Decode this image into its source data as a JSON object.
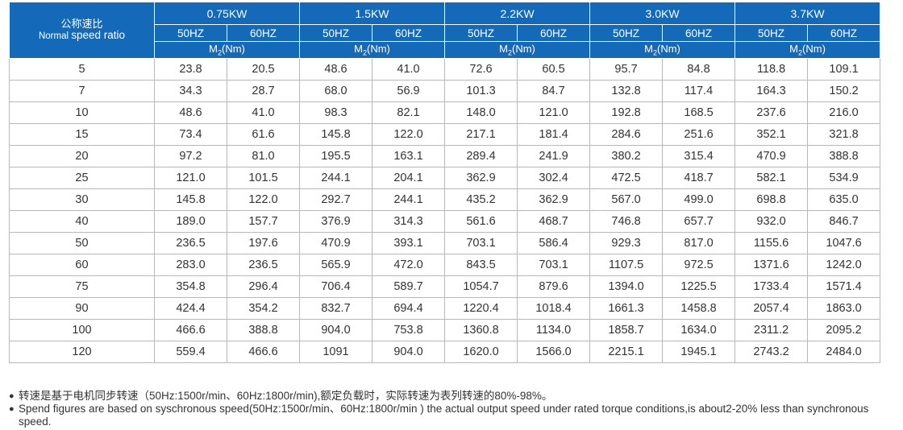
{
  "header": {
    "ratio_label_cn": "公称速比",
    "ratio_label_en_prefix": "Normal ",
    "ratio_label_en_main": "speed ratio",
    "torque_label_prefix": "M",
    "torque_label_sub": "2",
    "torque_label_suffix": "(Nm)",
    "powers": [
      "0.75KW",
      "1.5KW",
      "2.2KW",
      "3.0KW",
      "3.7KW"
    ],
    "frequencies": [
      "50HZ",
      "60HZ"
    ]
  },
  "rows": [
    {
      "ratio": "5",
      "values": [
        "23.8",
        "20.5",
        "48.6",
        "41.0",
        "72.6",
        "60.5",
        "95.7",
        "84.8",
        "118.8",
        "109.1"
      ]
    },
    {
      "ratio": "7",
      "values": [
        "34.3",
        "28.7",
        "68.0",
        "56.9",
        "101.3",
        "84.7",
        "132.8",
        "117.4",
        "164.3",
        "150.2"
      ]
    },
    {
      "ratio": "10",
      "values": [
        "48.6",
        "41.0",
        "98.3",
        "82.1",
        "148.0",
        "121.0",
        "192.8",
        "168.5",
        "237.6",
        "216.0"
      ]
    },
    {
      "ratio": "15",
      "values": [
        "73.4",
        "61.6",
        "145.8",
        "122.0",
        "217.1",
        "181.4",
        "284.6",
        "251.6",
        "352.1",
        "321.8"
      ]
    },
    {
      "ratio": "20",
      "values": [
        "97.2",
        "81.0",
        "195.5",
        "163.1",
        "289.4",
        "241.9",
        "380.2",
        "315.4",
        "470.9",
        "388.8"
      ]
    },
    {
      "ratio": "25",
      "values": [
        "121.0",
        "101.5",
        "244.1",
        "204.1",
        "362.9",
        "302.4",
        "472.5",
        "418.7",
        "582.1",
        "534.9"
      ]
    },
    {
      "ratio": "30",
      "values": [
        "145.8",
        "122.0",
        "292.7",
        "244.1",
        "435.2",
        "362.9",
        "567.0",
        "499.0",
        "698.8",
        "635.0"
      ]
    },
    {
      "ratio": "40",
      "values": [
        "189.0",
        "157.7",
        "376.9",
        "314.3",
        "561.6",
        "468.7",
        "746.8",
        "657.7",
        "932.0",
        "846.7"
      ]
    },
    {
      "ratio": "50",
      "values": [
        "236.5",
        "197.6",
        "470.9",
        "393.1",
        "703.1",
        "586.4",
        "929.3",
        "817.0",
        "1155.6",
        "1047.6"
      ]
    },
    {
      "ratio": "60",
      "values": [
        "283.0",
        "236.5",
        "565.9",
        "472.0",
        "843.5",
        "703.1",
        "1107.5",
        "972.5",
        "1371.6",
        "1242.0"
      ]
    },
    {
      "ratio": "75",
      "values": [
        "354.8",
        "296.4",
        "706.4",
        "589.7",
        "1054.7",
        "879.6",
        "1394.0",
        "1225.5",
        "1733.4",
        "1571.4"
      ]
    },
    {
      "ratio": "90",
      "values": [
        "424.4",
        "354.2",
        "832.7",
        "694.4",
        "1220.4",
        "1018.4",
        "1661.3",
        "1458.8",
        "2057.4",
        "1863.0"
      ]
    },
    {
      "ratio": "100",
      "values": [
        "466.6",
        "388.8",
        "904.0",
        "753.8",
        "1360.8",
        "1134.0",
        "1858.7",
        "1634.0",
        "2311.2",
        "2095.2"
      ]
    },
    {
      "ratio": "120",
      "values": [
        "559.4",
        "466.6",
        "1091",
        "904.0",
        "1620.0",
        "1566.0",
        "2215.1",
        "1945.1",
        "2743.2",
        "2484.0"
      ]
    }
  ],
  "notes": {
    "bullet": "●",
    "cn": "转速是基于电机同步转速（50Hz:1500r/min、60Hz:1800r/min),额定负载时，实际转速为表列转速的80%-98%。",
    "en": "Spend figures are based on syschronous speed(50Hz:1500r/min、60Hz:1800r/min ) the actual output speed under rated torque conditions,is about2-20% less than synchronous speed."
  },
  "colors": {
    "header_bg": "#1469b8",
    "header_text": "#ffffff",
    "grid": "#b8b8b8",
    "body_text": "#333333"
  }
}
